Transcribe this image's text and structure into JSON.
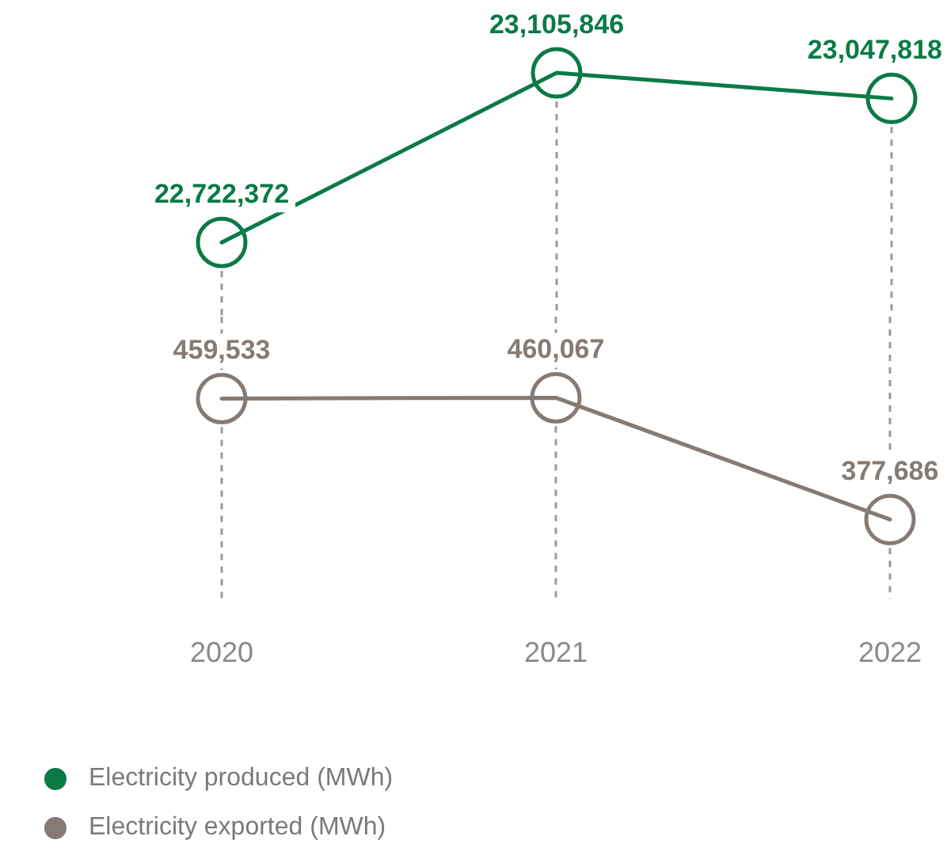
{
  "chart_data": [
    {
      "type": "line",
      "categories": [
        "2020",
        "2021",
        "2022"
      ],
      "series": [
        {
          "name": "Electricity produced (MWh)",
          "color": "#0a7a47",
          "values": [
            22722372,
            23105846,
            23047818
          ],
          "value_labels": [
            "22,722,372",
            "23,105,846",
            "23,047,818"
          ]
        }
      ],
      "grid": "x",
      "legend": "bottom left",
      "marker": "circle",
      "line_style": "solid",
      "tick_labels": false
    },
    {
      "type": "line",
      "categories": [
        "2020",
        "2021",
        "2022"
      ],
      "series": [
        {
          "name": "Electricity exported (MWh)",
          "color": "#857a74",
          "values": [
            459533,
            460067,
            377686
          ],
          "value_labels": [
            "459,533",
            "460,067",
            "377,686"
          ]
        }
      ],
      "grid": "x",
      "legend": "bottom left",
      "marker": "circle",
      "line_style": "solid",
      "tick_labels": "x"
    }
  ]
}
